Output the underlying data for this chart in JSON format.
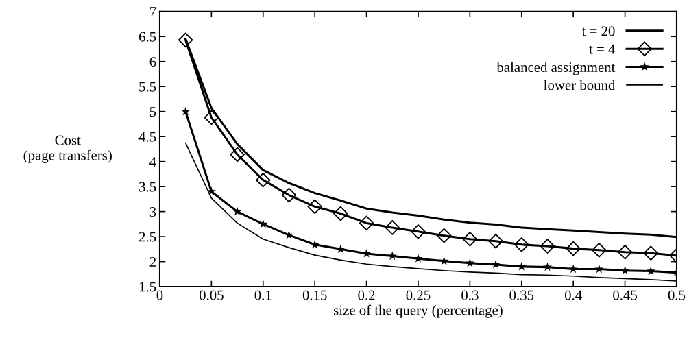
{
  "chart_data": {
    "type": "line",
    "xlabel": "size of the query (percentage)",
    "ylabel": "Cost\n(page transfers)",
    "x": [
      0.025,
      0.05,
      0.075,
      0.1,
      0.125,
      0.15,
      0.175,
      0.2,
      0.225,
      0.25,
      0.275,
      0.3,
      0.325,
      0.35,
      0.375,
      0.4,
      0.425,
      0.45,
      0.475,
      0.5
    ],
    "series": [
      {
        "name": "t = 20",
        "color": "#000000",
        "marker": "none",
        "values": [
          6.45,
          5.07,
          4.35,
          3.83,
          3.57,
          3.37,
          3.22,
          3.06,
          2.98,
          2.92,
          2.84,
          2.78,
          2.74,
          2.68,
          2.65,
          2.62,
          2.59,
          2.56,
          2.54,
          2.49
        ]
      },
      {
        "name": "t = 4",
        "color": "#000000",
        "marker": "diamond",
        "values": [
          6.43,
          4.88,
          4.14,
          3.63,
          3.33,
          3.1,
          2.96,
          2.77,
          2.68,
          2.6,
          2.52,
          2.45,
          2.41,
          2.34,
          2.31,
          2.26,
          2.23,
          2.19,
          2.17,
          2.12
        ]
      },
      {
        "name": "balanced assignment",
        "color": "#000000",
        "marker": "star",
        "values": [
          5.0,
          3.4,
          3.0,
          2.75,
          2.53,
          2.34,
          2.25,
          2.16,
          2.11,
          2.06,
          2.01,
          1.97,
          1.94,
          1.9,
          1.89,
          1.85,
          1.85,
          1.82,
          1.81,
          1.78
        ]
      },
      {
        "name": "lower bound",
        "color": "#000000",
        "marker": "none",
        "values": [
          4.37,
          3.27,
          2.77,
          2.45,
          2.28,
          2.13,
          2.03,
          1.95,
          1.9,
          1.86,
          1.82,
          1.79,
          1.77,
          1.74,
          1.73,
          1.71,
          1.68,
          1.66,
          1.64,
          1.61
        ]
      }
    ],
    "xlim": [
      0,
      0.5
    ],
    "xticks": [
      0,
      0.05,
      0.1,
      0.15,
      0.2,
      0.25,
      0.3,
      0.35,
      0.4,
      0.45,
      0.5
    ],
    "ylim": [
      1.5,
      7
    ],
    "yticks": [
      1.5,
      2,
      2.5,
      3,
      3.5,
      4,
      4.5,
      5,
      5.5,
      6,
      6.5,
      7
    ],
    "grid": false,
    "legend": "top right",
    "line_style": "solid"
  }
}
